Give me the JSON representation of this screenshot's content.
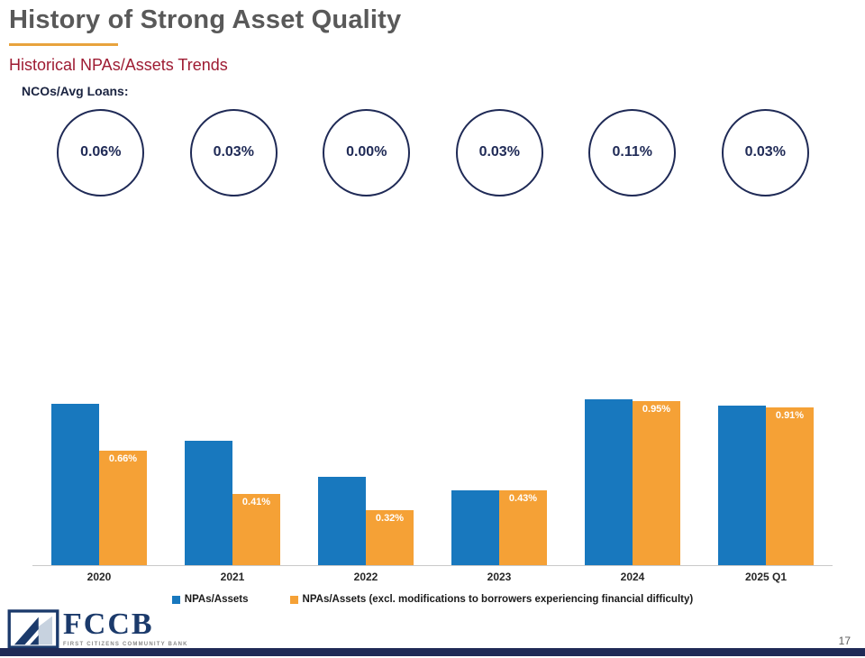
{
  "title": "History of Strong Asset Quality",
  "subtitle": "Historical NPAs/Assets Trends",
  "ncos": {
    "label": "NCOs/Avg Loans:",
    "values": [
      "0.06%",
      "0.03%",
      "0.00%",
      "0.03%",
      "0.11%",
      "0.03%"
    ]
  },
  "chart_data": {
    "type": "bar",
    "categories": [
      "2020",
      "2021",
      "2022",
      "2023",
      "2024",
      "2025 Q1"
    ],
    "series": [
      {
        "name": "NPAs/Assets",
        "color": "#1878BE",
        "values": [
          0.93,
          0.72,
          0.51,
          0.43,
          0.96,
          0.92
        ],
        "labels": [
          "",
          "",
          "",
          "",
          "",
          ""
        ]
      },
      {
        "name": "NPAs/Assets (excl. modifications to borrowers experiencing financial difficulty)",
        "color": "#F5A136",
        "values": [
          0.66,
          0.41,
          0.32,
          0.43,
          0.95,
          0.91
        ],
        "labels": [
          "0.66%",
          "0.41%",
          "0.32%",
          "0.43%",
          "0.95%",
          "0.91%"
        ]
      }
    ],
    "ylim": [
      0,
      1.0
    ],
    "grid": false,
    "legend_position": "bottom",
    "value_label_style": "white-inside-top-of-orange-bars"
  },
  "footer": {
    "logo_text": "FCCB",
    "logo_subtext": "FIRST CITIZENS COMMUNITY BANK",
    "page_number": "17"
  },
  "colors": {
    "title_gray": "#595959",
    "accent_orange": "#E8A33D",
    "subtitle_red": "#9E1B32",
    "navy": "#1F2A56",
    "bar_blue": "#1878BE",
    "bar_orange": "#F5A136"
  }
}
